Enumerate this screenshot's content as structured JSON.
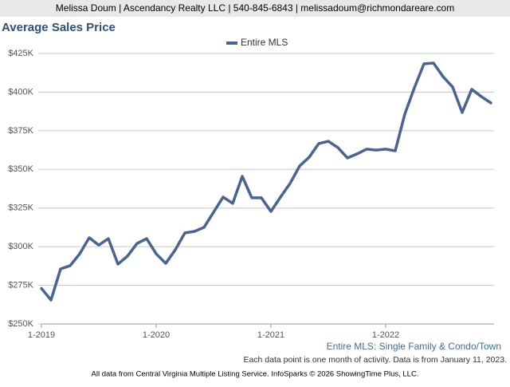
{
  "header": "Melissa Doum | Ascendancy Realty LLC | 540-845-6843 | melissadoum@richmondareare.com",
  "chart_data": {
    "type": "line",
    "title": "Average Sales Price",
    "categories": [
      "1-2019",
      null,
      null,
      null,
      null,
      null,
      null,
      null,
      null,
      null,
      null,
      null,
      "1-2020",
      null,
      null,
      null,
      null,
      null,
      null,
      null,
      null,
      null,
      null,
      null,
      "1-2021",
      null,
      null,
      null,
      null,
      null,
      null,
      null,
      null,
      null,
      null,
      null,
      "1-2022",
      null,
      null,
      null,
      null,
      null,
      null,
      null,
      null,
      null,
      null,
      null
    ],
    "series": [
      {
        "name": "Entire MLS",
        "color": "#4a6491",
        "values": [
          273,
          265.5,
          285.6,
          287.7,
          295.4,
          305.8,
          301,
          305.2,
          288.7,
          293.9,
          302.1,
          305.2,
          295.4,
          289.2,
          298,
          308.9,
          309.9,
          312.5,
          322.3,
          332.1,
          328,
          345.5,
          331.6,
          331.6,
          322.8,
          332.1,
          340.9,
          352.2,
          357.9,
          366.7,
          368.2,
          364.1,
          357.4,
          360,
          363.1,
          362.5,
          363.1,
          362,
          385.8,
          402.8,
          418.3,
          418.8,
          410,
          403.3,
          386.8,
          401.8,
          397.1,
          393
        ]
      }
    ],
    "ylim": [
      250,
      425
    ],
    "yticks": [
      {
        "value": 250,
        "label": "$250K"
      },
      {
        "value": 275,
        "label": "$275K"
      },
      {
        "value": 300,
        "label": "$300K"
      },
      {
        "value": 325,
        "label": "$325K"
      },
      {
        "value": 350,
        "label": "$350K"
      },
      {
        "value": 375,
        "label": "$375K"
      },
      {
        "value": 400,
        "label": "$400K"
      },
      {
        "value": 425,
        "label": "$425K"
      }
    ],
    "grid": true,
    "legend": "top",
    "subtitle": "Entire MLS: Single Family & Condo/Town",
    "note": "Each data point is one month of activity. Data is from January 11, 2023.",
    "source": "All data from Central Virginia Multiple Listing Service. InfoSparks © 2026 ShowingTime Plus, LLC."
  }
}
